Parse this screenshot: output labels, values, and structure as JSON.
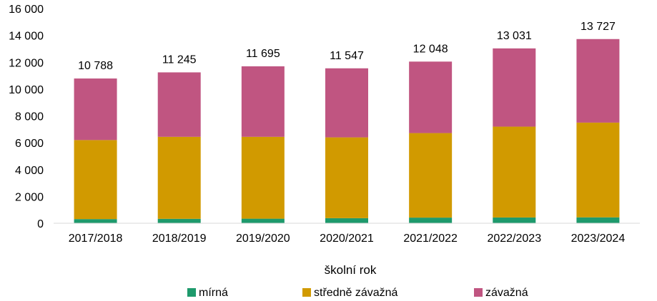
{
  "chart_data": {
    "type": "bar",
    "stacked": true,
    "categories": [
      "2017/2018",
      "2018/2019",
      "2019/2020",
      "2020/2021",
      "2021/2022",
      "2022/2023",
      "2023/2024"
    ],
    "series": [
      {
        "name": "mírná",
        "color": "#1e9a6c",
        "values": [
          310,
          330,
          340,
          380,
          420,
          430,
          440
        ]
      },
      {
        "name": "středně závažná",
        "color": "#d19a00",
        "values": [
          5890,
          6110,
          6100,
          6020,
          6300,
          6770,
          7060
        ]
      },
      {
        "name": "závažná",
        "color": "#c05581",
        "values": [
          4588,
          4805,
          5255,
          5147,
          5328,
          5831,
          6227
        ]
      }
    ],
    "totals": [
      10788,
      11245,
      11695,
      11547,
      12048,
      13031,
      13727
    ],
    "total_labels": [
      "10 788",
      "11 245",
      "11 695",
      "11 547",
      "12 048",
      "13 031",
      "13 727"
    ],
    "ylim": [
      0,
      16000
    ],
    "yticks": [
      0,
      2000,
      4000,
      6000,
      8000,
      10000,
      12000,
      14000,
      16000
    ],
    "ytick_labels": [
      "0",
      "2 000",
      "4 000",
      "6 000",
      "8 000",
      "10 000",
      "12 000",
      "14 000",
      "16 000"
    ],
    "xlabel": "školní rok",
    "ylabel": "",
    "title": "",
    "grid": false,
    "legend_position": "bottom"
  }
}
